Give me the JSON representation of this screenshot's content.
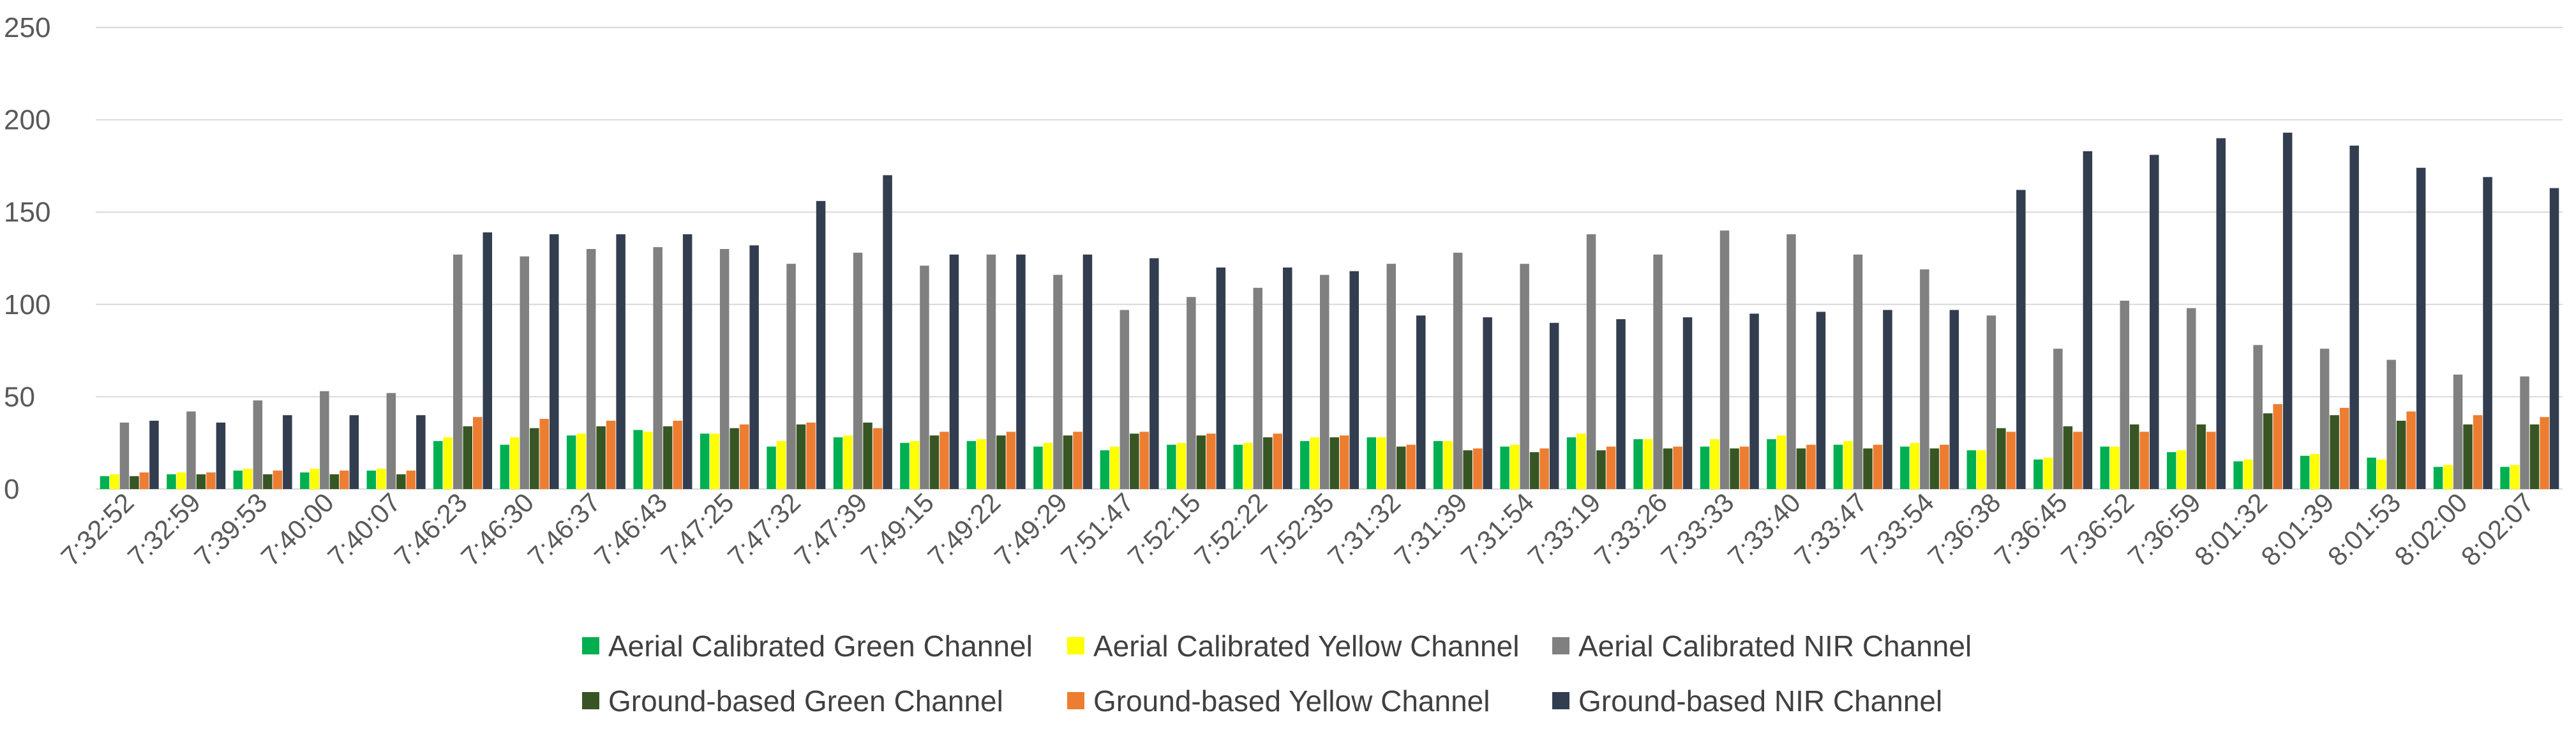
{
  "chart_data": {
    "type": "bar",
    "title": "",
    "xlabel": "",
    "ylabel": "",
    "ylim": [
      0,
      250
    ],
    "yticks": [
      0,
      50,
      100,
      150,
      200,
      250
    ],
    "grid": true,
    "legend_position": "bottom",
    "categories": [
      "7:32:52",
      "7:32:59",
      "7:39:53",
      "7:40:00",
      "7:40:07",
      "7:46:23",
      "7:46:30",
      "7:46:37",
      "7:46:43",
      "7:47:25",
      "7:47:32",
      "7:47:39",
      "7:49:15",
      "7:49:22",
      "7:49:29",
      "7:51:47",
      "7:52:15",
      "7:52:22",
      "7:52:35",
      "7:31:32",
      "7:31:39",
      "7:31:54",
      "7:33:19",
      "7:33:26",
      "7:33:33",
      "7:33:40",
      "7:33:47",
      "7:33:54",
      "7:36:38",
      "7:36:45",
      "7:36:52",
      "7:36:59",
      "8:01:32",
      "8:01:39",
      "8:01:53",
      "8:02:00",
      "8:02:07"
    ],
    "series": [
      {
        "name": "Aerial Calibrated Green Channel",
        "color": "#00b050",
        "values": [
          7,
          8,
          10,
          9,
          10,
          26,
          24,
          29,
          32,
          30,
          23,
          28,
          25,
          26,
          23,
          21,
          24,
          24,
          26,
          28,
          26,
          23,
          28,
          27,
          23,
          27,
          24,
          23,
          21,
          16,
          23,
          20,
          15,
          18,
          17,
          12,
          12
        ]
      },
      {
        "name": "Aerial Calibrated Yellow Channel",
        "color": "#ffff00",
        "values": [
          8,
          9,
          11,
          11,
          11,
          28,
          28,
          30,
          31,
          30,
          26,
          29,
          26,
          27,
          25,
          23,
          25,
          25,
          28,
          28,
          26,
          24,
          30,
          27,
          27,
          29,
          26,
          25,
          21,
          17,
          23,
          21,
          16,
          19,
          16,
          13,
          13
        ]
      },
      {
        "name": "Aerial Calibrated NIR Channel",
        "color": "#808080",
        "values": [
          36,
          42,
          48,
          53,
          52,
          127,
          126,
          130,
          131,
          130,
          122,
          128,
          121,
          127,
          116,
          97,
          104,
          109,
          116,
          122,
          128,
          122,
          138,
          127,
          140,
          138,
          127,
          119,
          94,
          76,
          102,
          98,
          78,
          76,
          70,
          62,
          61
        ]
      },
      {
        "name": "Ground-based Green Channel",
        "color": "#375623",
        "values": [
          7,
          8,
          8,
          8,
          8,
          34,
          33,
          34,
          34,
          33,
          35,
          36,
          29,
          29,
          29,
          30,
          29,
          28,
          28,
          23,
          21,
          20,
          21,
          22,
          22,
          22,
          22,
          22,
          33,
          34,
          35,
          35,
          41,
          40,
          37,
          35,
          35
        ]
      },
      {
        "name": "Ground-based Yellow Channel",
        "color": "#ed7d31",
        "values": [
          9,
          9,
          10,
          10,
          10,
          39,
          38,
          37,
          37,
          35,
          36,
          33,
          31,
          31,
          31,
          31,
          30,
          30,
          29,
          24,
          22,
          22,
          23,
          23,
          23,
          24,
          24,
          24,
          31,
          31,
          31,
          31,
          46,
          44,
          42,
          40,
          39
        ]
      },
      {
        "name": "Ground-based NIR Channel",
        "color": "#323e4f",
        "values": [
          37,
          36,
          40,
          40,
          40,
          139,
          138,
          138,
          138,
          132,
          156,
          170,
          127,
          127,
          127,
          125,
          120,
          120,
          118,
          94,
          93,
          90,
          92,
          93,
          95,
          96,
          97,
          97,
          162,
          183,
          181,
          190,
          193,
          186,
          174,
          169,
          163
        ]
      }
    ]
  }
}
